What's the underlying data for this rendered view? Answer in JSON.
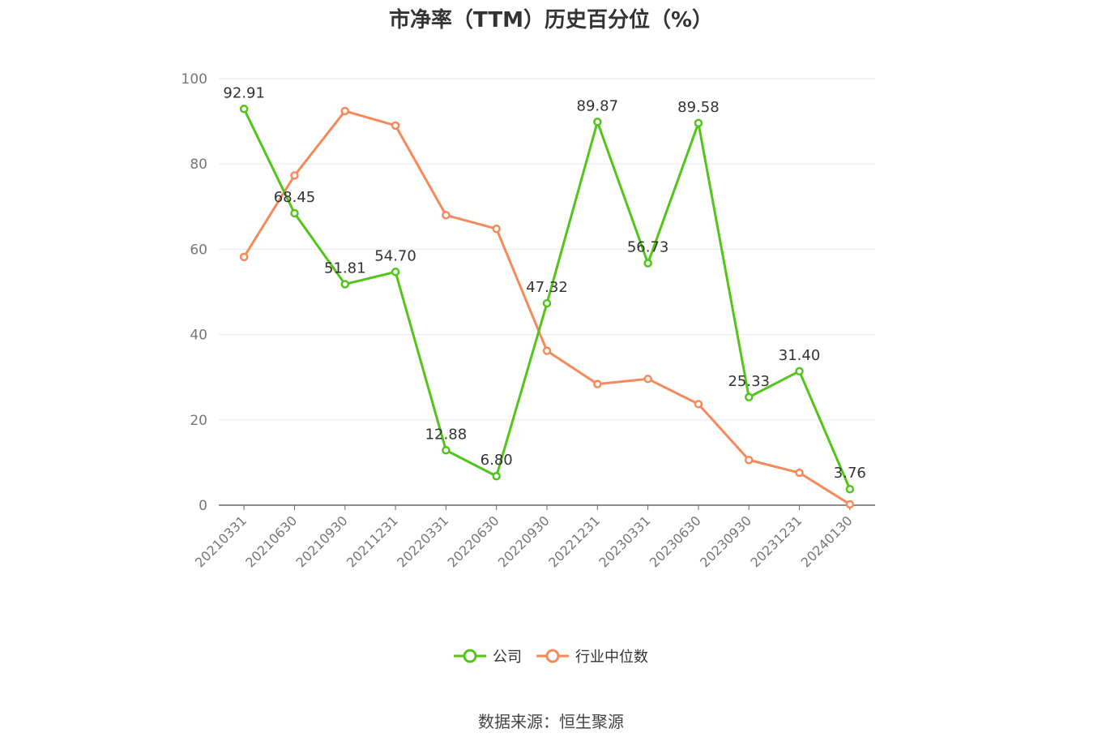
{
  "title": "市净率（TTM）历史百分位（%）",
  "source": "数据来源：恒生聚源",
  "colors": {
    "company": "#52c41a",
    "industry": "#f5895a",
    "grid": "#e6e8ef",
    "axis": "#666666"
  },
  "chart_data": {
    "type": "line",
    "title": "市净率（TTM）历史百分位（%）",
    "categories": [
      "20210331",
      "20210630",
      "20210930",
      "20211231",
      "20220331",
      "20220630",
      "20220930",
      "20221231",
      "20230331",
      "20230630",
      "20230930",
      "20231231",
      "20240130"
    ],
    "ylim": [
      0,
      100
    ],
    "yticks": [
      0,
      20,
      40,
      60,
      80,
      100
    ],
    "grid": true,
    "legend_position": "bottom",
    "series": [
      {
        "name": "公司",
        "color": "#52c41a",
        "values": [
          92.91,
          68.45,
          51.81,
          54.7,
          12.88,
          6.8,
          47.32,
          89.87,
          56.73,
          89.58,
          25.33,
          31.4,
          3.76
        ],
        "labels": [
          "92.91",
          "68.45",
          "51.81",
          "54.70",
          "12.88",
          "6.80",
          "47.32",
          "89.87",
          "56.73",
          "89.58",
          "25.33",
          "31.40",
          "3.76"
        ]
      },
      {
        "name": "行业中位数",
        "color": "#f5895a",
        "values": [
          58.2,
          77.3,
          92.4,
          89.0,
          68.0,
          64.8,
          36.2,
          28.4,
          29.6,
          23.7,
          10.6,
          7.6,
          0.2
        ]
      }
    ]
  }
}
